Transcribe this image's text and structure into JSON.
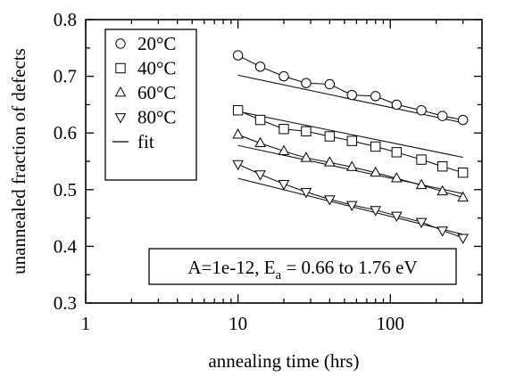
{
  "chart_data": {
    "type": "scatter",
    "xlabel": "annealing time (hrs)",
    "ylabel": "unannealed fraction of defects",
    "xscale": "log",
    "xlim": [
      1,
      400
    ],
    "ylim": [
      0.3,
      0.8
    ],
    "x_ticks": [
      1,
      10,
      100
    ],
    "x_tick_labels": [
      "1",
      "10",
      "100"
    ],
    "y_ticks": [
      0.3,
      0.4,
      0.5,
      0.6,
      0.7,
      0.8
    ],
    "y_tick_labels": [
      "0.3",
      "0.4",
      "0.5",
      "0.6",
      "0.7",
      "0.8"
    ],
    "grid": false,
    "legend_position": "top-left",
    "legend_fit_label": "fit",
    "annotation": {
      "prefix": "A=1e-12, E",
      "subscript": "a",
      "suffix": " = 0.66 to 1.76 eV"
    },
    "series": [
      {
        "name": "20°C",
        "marker": "circle",
        "x": [
          10,
          14,
          20,
          28,
          40,
          56,
          80,
          110,
          160,
          220,
          300
        ],
        "y": [
          0.737,
          0.717,
          0.7,
          0.688,
          0.686,
          0.667,
          0.665,
          0.65,
          0.64,
          0.63,
          0.623
        ],
        "fit": [
          0.702,
          0.618
        ]
      },
      {
        "name": "40°C",
        "marker": "square",
        "x": [
          10,
          14,
          20,
          28,
          40,
          56,
          80,
          110,
          160,
          220,
          300
        ],
        "y": [
          0.64,
          0.623,
          0.607,
          0.603,
          0.594,
          0.586,
          0.576,
          0.566,
          0.553,
          0.541,
          0.53
        ],
        "fit": [
          0.638,
          0.557
        ]
      },
      {
        "name": "60°C",
        "marker": "triangle-up",
        "x": [
          10,
          14,
          20,
          28,
          40,
          56,
          80,
          110,
          160,
          220,
          300
        ],
        "y": [
          0.597,
          0.582,
          0.568,
          0.556,
          0.548,
          0.54,
          0.53,
          0.52,
          0.508,
          0.497,
          0.486
        ],
        "fit": [
          0.578,
          0.493
        ]
      },
      {
        "name": "80°C",
        "marker": "triangle-down",
        "x": [
          10,
          14,
          20,
          28,
          40,
          56,
          80,
          110,
          160,
          220,
          300
        ],
        "y": [
          0.545,
          0.527,
          0.51,
          0.496,
          0.483,
          0.473,
          0.464,
          0.454,
          0.443,
          0.428,
          0.415
        ],
        "fit": [
          0.52,
          0.421
        ]
      }
    ]
  }
}
